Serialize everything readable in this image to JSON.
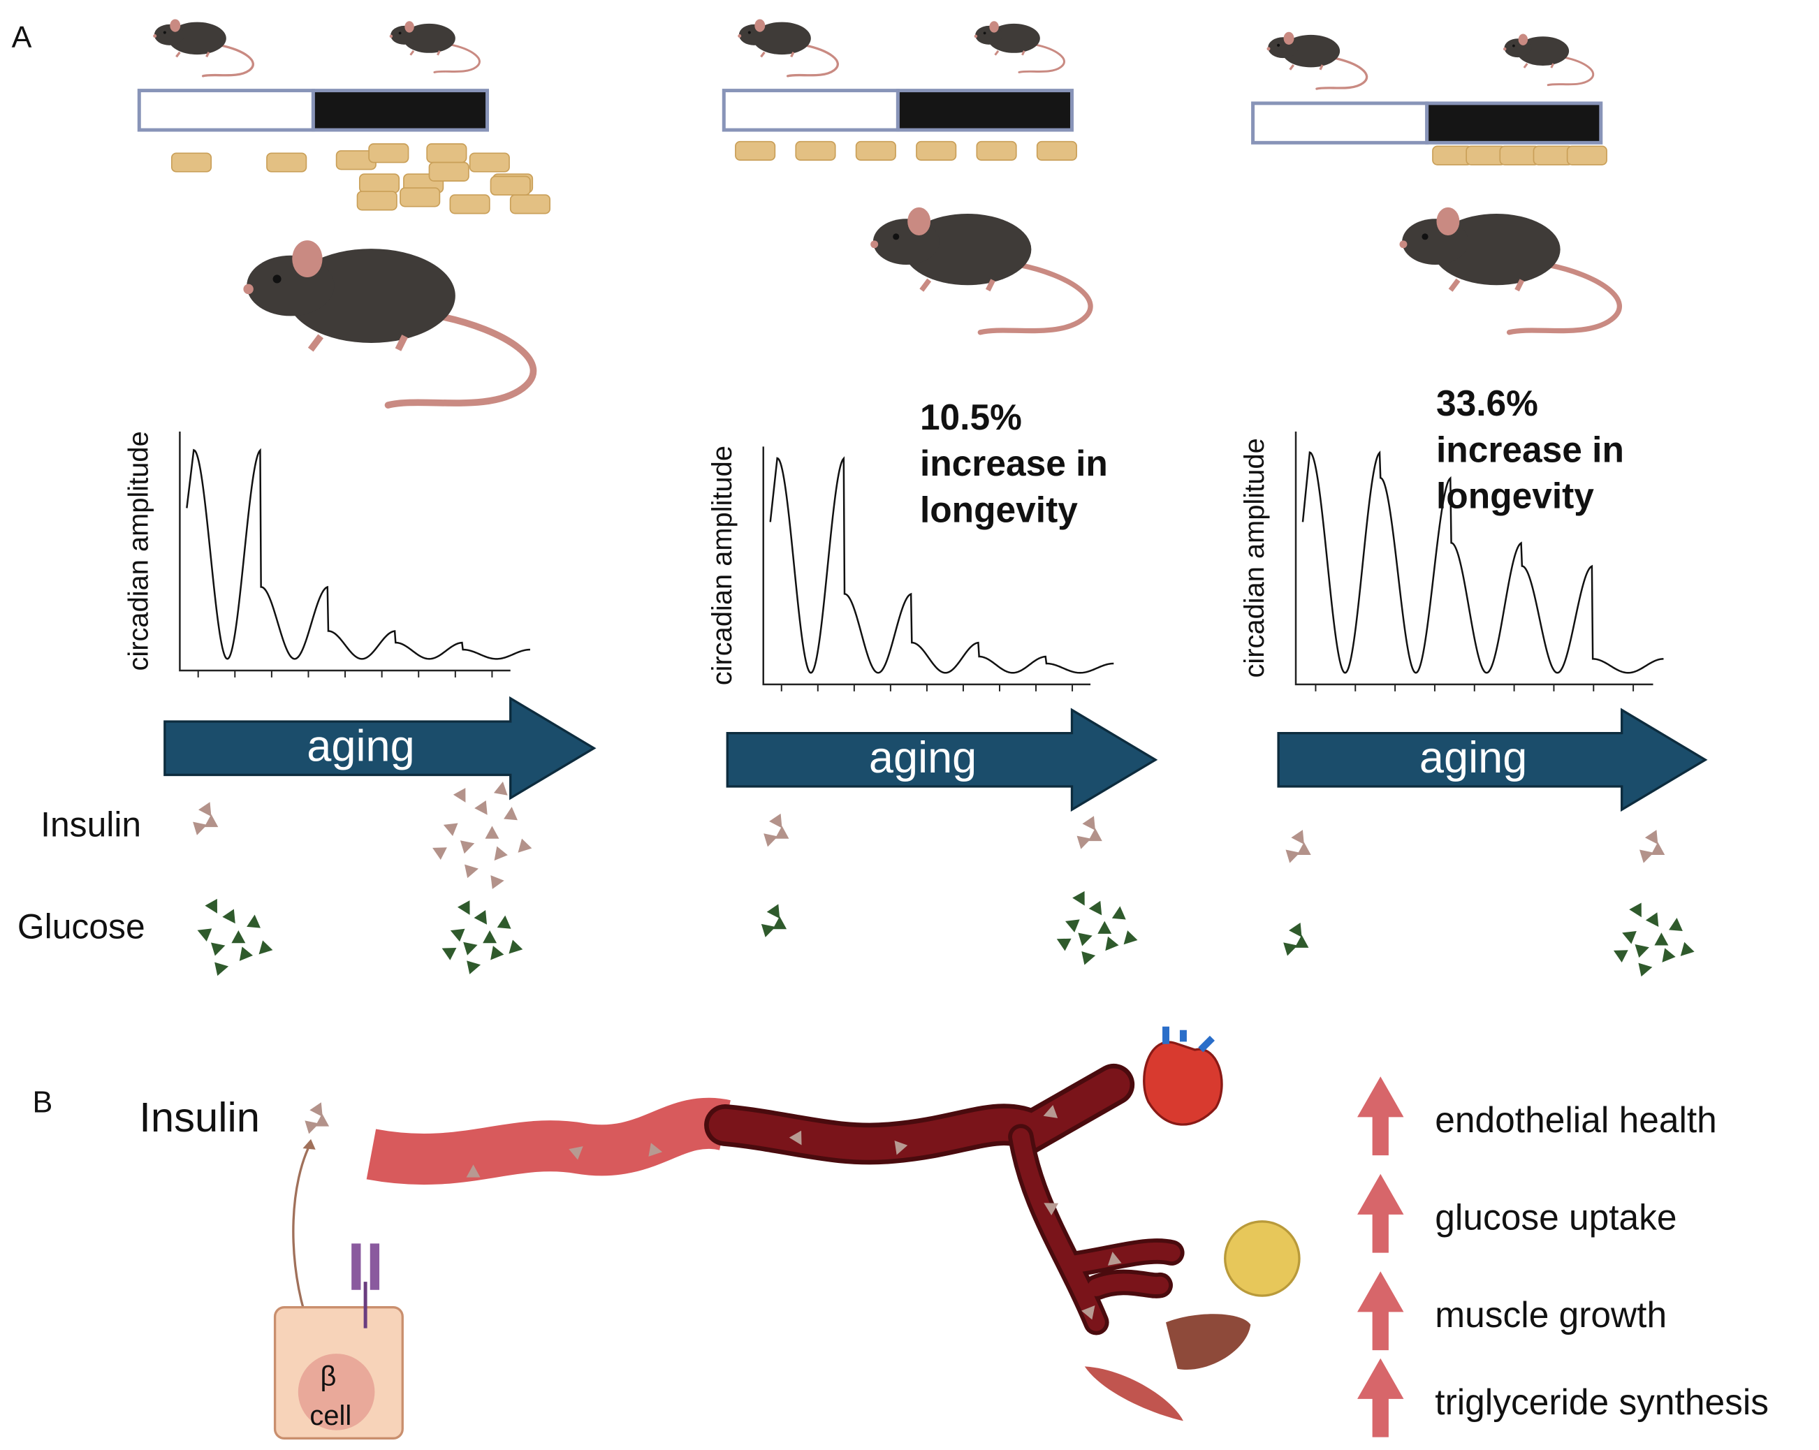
{
  "panel_a": {
    "label": "A",
    "columns": [
      {
        "y_axis_label": "circadian amplitude",
        "arrow_label": "aging"
      },
      {
        "y_axis_label": "circadian amplitude",
        "arrow_label": "aging",
        "annotation": [
          "10.5%",
          "increase in",
          "longevity"
        ]
      },
      {
        "y_axis_label": "circadian amplitude",
        "arrow_label": "aging",
        "annotation": [
          "33.6%",
          "increase in",
          "longevity"
        ]
      }
    ],
    "rows": [
      "Insulin",
      "Glucose"
    ]
  },
  "panel_b": {
    "label": "B",
    "insulin_label": "Insulin",
    "cell_label": [
      "β",
      "cell"
    ],
    "effects": [
      "endothelial health",
      "glucose uptake",
      "muscle growth",
      "triglyceride synthesis"
    ]
  }
}
